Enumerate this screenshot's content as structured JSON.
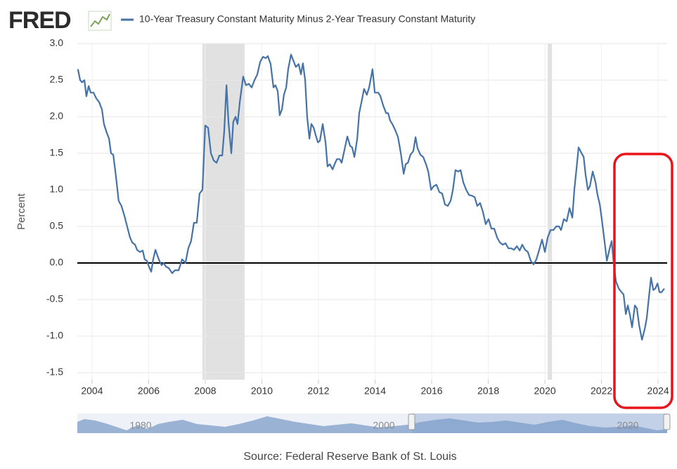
{
  "brand": "FRED",
  "chart_data": {
    "type": "line",
    "y_label": "Percent",
    "source": "Source: Federal Reserve Bank of St. Louis",
    "x": [
      2003.5,
      2003.58,
      2003.65,
      2003.73,
      2003.8,
      2003.88,
      2003.95,
      2004.05,
      2004.15,
      2004.25,
      2004.35,
      2004.42,
      2004.52,
      2004.6,
      2004.67,
      2004.75,
      2004.84,
      2004.94,
      2005.04,
      2005.14,
      2005.24,
      2005.34,
      2005.42,
      2005.52,
      2005.59,
      2005.69,
      2005.79,
      2005.86,
      2005.94,
      2006.01,
      2006.09,
      2006.16,
      2006.24,
      2006.31,
      2006.39,
      2006.46,
      2006.53,
      2006.61,
      2006.71,
      2006.83,
      2006.93,
      2007.06,
      2007.18,
      2007.3,
      2007.4,
      2007.5,
      2007.6,
      2007.7,
      2007.8,
      2007.9,
      2008.0,
      2008.1,
      2008.2,
      2008.3,
      2008.4,
      2008.5,
      2008.6,
      2008.67,
      2008.75,
      2008.82,
      2008.92,
      2008.99,
      2009.07,
      2009.14,
      2009.22,
      2009.34,
      2009.44,
      2009.54,
      2009.64,
      2009.74,
      2009.84,
      2009.94,
      2010.04,
      2010.14,
      2010.21,
      2010.31,
      2010.41,
      2010.48,
      2010.56,
      2010.63,
      2010.71,
      2010.78,
      2010.86,
      2010.93,
      2011.03,
      2011.13,
      2011.2,
      2011.3,
      2011.38,
      2011.45,
      2011.53,
      2011.6,
      2011.68,
      2011.75,
      2011.83,
      2011.9,
      2011.98,
      2012.05,
      2012.15,
      2012.25,
      2012.32,
      2012.4,
      2012.5,
      2012.57,
      2012.65,
      2012.75,
      2012.82,
      2012.92,
      2013.02,
      2013.12,
      2013.19,
      2013.27,
      2013.37,
      2013.44,
      2013.52,
      2013.61,
      2013.71,
      2013.79,
      2013.91,
      2013.99,
      2014.11,
      2014.19,
      2014.29,
      2014.39,
      2014.46,
      2014.53,
      2014.61,
      2014.71,
      2014.81,
      2014.91,
      2015.01,
      2015.08,
      2015.16,
      2015.25,
      2015.35,
      2015.43,
      2015.5,
      2015.6,
      2015.7,
      2015.8,
      2015.88,
      2015.98,
      2016.07,
      2016.17,
      2016.27,
      2016.37,
      2016.47,
      2016.57,
      2016.67,
      2016.75,
      2016.84,
      2016.94,
      2017.02,
      2017.12,
      2017.22,
      2017.32,
      2017.42,
      2017.52,
      2017.61,
      2017.71,
      2017.81,
      2017.91,
      2018.01,
      2018.11,
      2018.21,
      2018.31,
      2018.41,
      2018.51,
      2018.61,
      2018.71,
      2018.81,
      2018.91,
      2019.01,
      2019.11,
      2019.2,
      2019.3,
      2019.4,
      2019.5,
      2019.6,
      2019.7,
      2019.8,
      2019.9,
      2020.0,
      2020.1,
      2020.2,
      2020.3,
      2020.4,
      2020.5,
      2020.57,
      2020.67,
      2020.77,
      2020.87,
      2020.97,
      2021.04,
      2021.12,
      2021.19,
      2021.27,
      2021.37,
      2021.44,
      2021.52,
      2021.59,
      2021.69,
      2021.79,
      2021.86,
      2021.94,
      2022.01,
      2022.09,
      2022.19,
      2022.29,
      2022.36,
      2022.43,
      2022.51,
      2022.61,
      2022.71,
      2022.78,
      2022.86,
      2022.93,
      2023.01,
      2023.08,
      2023.18,
      2023.25,
      2023.33,
      2023.43,
      2023.53,
      2023.6,
      2023.68,
      2023.75,
      2023.83,
      2023.9,
      2023.98,
      2024.05,
      2024.12,
      2024.22
    ],
    "series": [
      {
        "name": "10-Year Treasury Constant Maturity Minus 2-Year Treasury Constant Maturity",
        "color": "#4572a7",
        "values": [
          2.65,
          2.5,
          2.47,
          2.5,
          2.28,
          2.42,
          2.33,
          2.33,
          2.25,
          2.2,
          2.1,
          1.9,
          1.78,
          1.7,
          1.5,
          1.48,
          1.2,
          0.85,
          0.78,
          0.65,
          0.5,
          0.35,
          0.28,
          0.25,
          0.18,
          0.15,
          0.17,
          0.05,
          0.03,
          -0.05,
          -0.12,
          0.05,
          0.18,
          0.1,
          0.02,
          -0.03,
          0.0,
          -0.05,
          -0.07,
          -0.14,
          -0.1,
          -0.1,
          0.05,
          0.0,
          0.2,
          0.3,
          0.55,
          0.55,
          0.95,
          1.0,
          1.88,
          1.85,
          1.5,
          1.4,
          1.37,
          1.47,
          1.47,
          1.8,
          2.43,
          1.93,
          1.5,
          1.93,
          2.0,
          1.9,
          2.2,
          2.55,
          2.43,
          2.45,
          2.4,
          2.5,
          2.58,
          2.75,
          2.82,
          2.8,
          2.83,
          2.72,
          2.4,
          2.43,
          2.35,
          2.02,
          2.1,
          2.3,
          2.4,
          2.65,
          2.85,
          2.75,
          2.68,
          2.72,
          2.58,
          2.73,
          2.5,
          2.0,
          1.7,
          1.9,
          1.85,
          1.75,
          1.65,
          1.67,
          1.9,
          1.65,
          1.32,
          1.35,
          1.28,
          1.35,
          1.42,
          1.42,
          1.37,
          1.55,
          1.73,
          1.6,
          1.58,
          1.45,
          1.7,
          2.05,
          2.2,
          2.38,
          2.3,
          2.4,
          2.65,
          2.33,
          2.33,
          2.28,
          2.15,
          2.05,
          2.05,
          1.95,
          1.9,
          1.82,
          1.72,
          1.5,
          1.22,
          1.35,
          1.37,
          1.48,
          1.53,
          1.72,
          1.57,
          1.48,
          1.45,
          1.35,
          1.25,
          1.0,
          1.05,
          1.07,
          0.97,
          0.95,
          0.8,
          0.78,
          0.85,
          1.0,
          1.27,
          1.25,
          1.27,
          1.1,
          1.0,
          0.93,
          0.92,
          0.9,
          0.78,
          0.82,
          0.7,
          0.53,
          0.6,
          0.47,
          0.47,
          0.35,
          0.28,
          0.25,
          0.27,
          0.2,
          0.2,
          0.18,
          0.23,
          0.17,
          0.25,
          0.18,
          0.15,
          0.03,
          -0.02,
          0.05,
          0.18,
          0.32,
          0.15,
          0.35,
          0.45,
          0.45,
          0.5,
          0.5,
          0.45,
          0.6,
          0.57,
          0.75,
          0.62,
          1.0,
          1.3,
          1.58,
          1.52,
          1.45,
          1.2,
          1.0,
          1.05,
          1.25,
          1.1,
          0.93,
          0.8,
          0.6,
          0.35,
          0.03,
          0.2,
          0.3,
          0.0,
          -0.25,
          -0.35,
          -0.4,
          -0.43,
          -0.7,
          -0.58,
          -0.72,
          -0.88,
          -0.58,
          -0.62,
          -0.85,
          -1.05,
          -0.9,
          -0.75,
          -0.45,
          -0.2,
          -0.37,
          -0.35,
          -0.28,
          -0.4,
          -0.4,
          -0.35
        ]
      }
    ],
    "recessions": [
      [
        2007.9,
        2009.39
      ],
      [
        2020.1,
        2020.25
      ]
    ],
    "recession_color": "#e1e1e1",
    "xlim": [
      2003.48,
      2024.32
    ],
    "xticks": [
      2004,
      2006,
      2008,
      2010,
      2012,
      2014,
      2016,
      2018,
      2020,
      2022,
      2024
    ],
    "ylim": [
      -1.5,
      3.0
    ],
    "yticks": [
      {
        "value": 3.0,
        "label": "3.0"
      },
      2.5,
      {
        "value": 2.0,
        "label": "2.0"
      },
      1.5,
      {
        "value": 1.0,
        "label": "1.0"
      },
      0.5,
      {
        "value": 0.0,
        "label": "0.0"
      },
      -0.5,
      {
        "value": -1.0,
        "label": "-1.0"
      },
      -1.5
    ],
    "grid": true,
    "navigator_labels": [
      "1980",
      "2000",
      "2020"
    ]
  }
}
